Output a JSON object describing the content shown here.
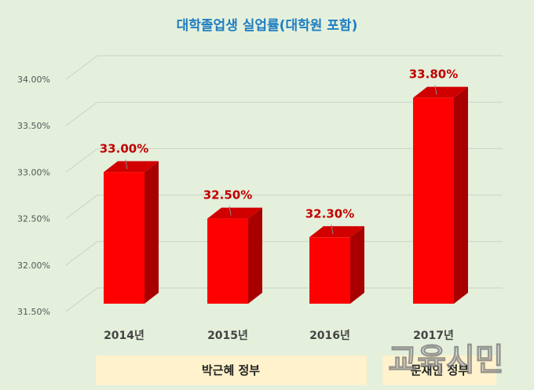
{
  "chart_data": {
    "type": "bar",
    "title": "대학졸업생 실업률(대학원 포함)",
    "categories": [
      "2014년",
      "2015년",
      "2016년",
      "2017년"
    ],
    "values": [
      33.0,
      32.5,
      32.3,
      33.8
    ],
    "data_labels": [
      "33.00%",
      "32.50%",
      "32.30%",
      "33.80%"
    ],
    "yticks": [
      "31.50%",
      "32.00%",
      "32.50%",
      "33.00%",
      "33.50%",
      "34.00%"
    ],
    "ylim": [
      31.5,
      34.0
    ],
    "grid": true,
    "bar_color": "#ff0000",
    "label_color": "#c00000",
    "groups": [
      {
        "label": "박근혜 정부",
        "categories": [
          "2014년",
          "2015년",
          "2016년"
        ]
      },
      {
        "label": "문재인 정부",
        "categories": [
          "2017년"
        ]
      }
    ]
  },
  "watermark": "교육시민"
}
